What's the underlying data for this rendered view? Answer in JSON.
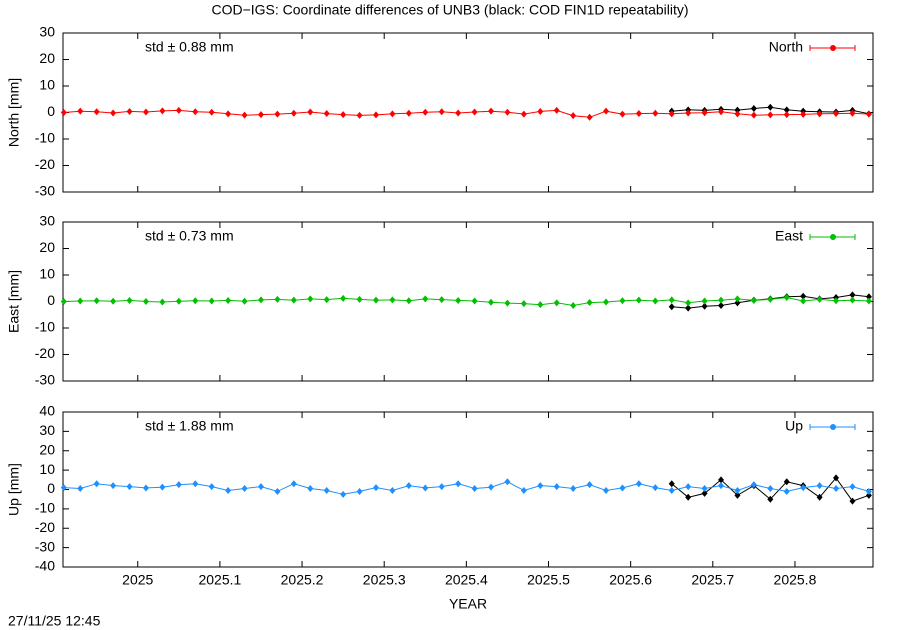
{
  "title": "COD−IGS: Coordinate differences of UNB3 (black: COD FIN1D repeatability)",
  "timestamp": "27/11/25 12:45",
  "chart_data": [
    {
      "type": "line",
      "ylabel": "North [mm]",
      "annotation": "std ± 0.88 mm",
      "legend": "top right",
      "xlim": [
        2024.909,
        2025.895
      ],
      "xticks": [
        2025,
        2025.1,
        2025.2,
        2025.3,
        2025.4,
        2025.5,
        2025.6,
        2025.7,
        2025.8
      ],
      "xtick_labels": false,
      "ylim": [
        -30,
        30
      ],
      "yticks": [
        -30,
        -20,
        -10,
        0,
        10,
        20,
        30
      ],
      "series": [
        {
          "color": "#000000",
          "x": [
            2025.65,
            2025.67,
            2025.69,
            2025.71,
            2025.73,
            2025.75,
            2025.77,
            2025.79,
            2025.81,
            2025.83,
            2025.85,
            2025.87,
            2025.89
          ],
          "values": [
            0.5,
            1,
            0.8,
            1.2,
            0.9,
            1.5,
            2,
            1,
            0.5,
            0.3,
            0.2,
            0.8,
            -0.5
          ]
        },
        {
          "name": "North",
          "color": "#ff0000",
          "x": [
            2024.91,
            2024.93,
            2024.95,
            2024.97,
            2024.99,
            2025.01,
            2025.03,
            2025.05,
            2025.07,
            2025.09,
            2025.11,
            2025.13,
            2025.15,
            2025.17,
            2025.19,
            2025.21,
            2025.23,
            2025.25,
            2025.27,
            2025.29,
            2025.31,
            2025.33,
            2025.35,
            2025.37,
            2025.39,
            2025.41,
            2025.43,
            2025.45,
            2025.47,
            2025.49,
            2025.51,
            2025.53,
            2025.55,
            2025.57,
            2025.59,
            2025.61,
            2025.63,
            2025.65,
            2025.67,
            2025.69,
            2025.71,
            2025.73,
            2025.75,
            2025.77,
            2025.79,
            2025.81,
            2025.83,
            2025.85,
            2025.87,
            2025.89
          ],
          "values": [
            0,
            0.5,
            0.3,
            -0.2,
            0.4,
            0.2,
            0.6,
            0.8,
            0.3,
            0.1,
            -0.5,
            -1,
            -0.8,
            -0.6,
            -0.3,
            0.2,
            -0.4,
            -0.8,
            -1.1,
            -0.9,
            -0.5,
            -0.3,
            0.1,
            0.3,
            -0.2,
            0.2,
            0.5,
            0.1,
            -0.6,
            0.4,
            0.8,
            -1.2,
            -1.8,
            0.5,
            -0.6,
            -0.4,
            -0.3,
            -0.5,
            -0.2,
            -0.1,
            0.3,
            -0.5,
            -1,
            -0.9,
            -0.8,
            -0.7,
            -0.5,
            -0.4,
            -0.3,
            -0.6
          ]
        }
      ]
    },
    {
      "type": "line",
      "ylabel": "East [mm]",
      "annotation": "std ± 0.73 mm",
      "legend": "top right",
      "xlim": [
        2024.909,
        2025.895
      ],
      "xticks": [
        2025,
        2025.1,
        2025.2,
        2025.3,
        2025.4,
        2025.5,
        2025.6,
        2025.7,
        2025.8
      ],
      "xtick_labels": false,
      "ylim": [
        -30,
        30
      ],
      "yticks": [
        -30,
        -20,
        -10,
        0,
        10,
        20,
        30
      ],
      "series": [
        {
          "color": "#000000",
          "x": [
            2025.65,
            2025.67,
            2025.69,
            2025.71,
            2025.73,
            2025.75,
            2025.77,
            2025.79,
            2025.81,
            2025.83,
            2025.85,
            2025.87,
            2025.89
          ],
          "values": [
            -2,
            -2.5,
            -1.8,
            -1.5,
            -0.5,
            0.5,
            1,
            1.8,
            2,
            1,
            1.5,
            2.5,
            1.8
          ]
        },
        {
          "name": "East",
          "color": "#00c000",
          "x": [
            2024.91,
            2024.93,
            2024.95,
            2024.97,
            2024.99,
            2025.01,
            2025.03,
            2025.05,
            2025.07,
            2025.09,
            2025.11,
            2025.13,
            2025.15,
            2025.17,
            2025.19,
            2025.21,
            2025.23,
            2025.25,
            2025.27,
            2025.29,
            2025.31,
            2025.33,
            2025.35,
            2025.37,
            2025.39,
            2025.41,
            2025.43,
            2025.45,
            2025.47,
            2025.49,
            2025.51,
            2025.53,
            2025.55,
            2025.57,
            2025.59,
            2025.61,
            2025.63,
            2025.65,
            2025.67,
            2025.69,
            2025.71,
            2025.73,
            2025.75,
            2025.77,
            2025.79,
            2025.81,
            2025.83,
            2025.85,
            2025.87,
            2025.89
          ],
          "values": [
            0,
            0.2,
            0.3,
            0.1,
            0.4,
            0,
            -0.2,
            0.1,
            0.3,
            0.2,
            0.4,
            0.1,
            0.6,
            0.8,
            0.5,
            1,
            0.7,
            1.2,
            0.8,
            0.5,
            0.6,
            0.3,
            1,
            0.7,
            0.4,
            0.2,
            -0.3,
            -0.6,
            -0.8,
            -1.2,
            -0.5,
            -1.5,
            -0.4,
            -0.2,
            0.3,
            0.5,
            0.2,
            0.6,
            -0.5,
            0.2,
            0.5,
            1,
            0.4,
            0.8,
            1.5,
            0.2,
            0.8,
            0.3,
            0.5,
            0.2
          ]
        }
      ]
    },
    {
      "type": "line",
      "ylabel": "Up [mm]",
      "annotation": "std ± 1.88 mm",
      "legend": "top right",
      "xlabel": "YEAR",
      "xlim": [
        2024.909,
        2025.895
      ],
      "xticks": [
        2025,
        2025.1,
        2025.2,
        2025.3,
        2025.4,
        2025.5,
        2025.6,
        2025.7,
        2025.8
      ],
      "xtick_labels": true,
      "ylim": [
        -40,
        40
      ],
      "yticks": [
        -40,
        -30,
        -20,
        -10,
        0,
        10,
        20,
        30,
        40
      ],
      "series": [
        {
          "color": "#000000",
          "x": [
            2025.65,
            2025.67,
            2025.69,
            2025.71,
            2025.73,
            2025.75,
            2025.77,
            2025.79,
            2025.81,
            2025.83,
            2025.85,
            2025.87,
            2025.89
          ],
          "values": [
            3,
            -4,
            -2,
            5,
            -3,
            2,
            -5,
            4,
            2,
            -4,
            6,
            -6,
            -3
          ]
        },
        {
          "name": "Up",
          "color": "#1e90ff",
          "x": [
            2024.91,
            2024.93,
            2024.95,
            2024.97,
            2024.99,
            2025.01,
            2025.03,
            2025.05,
            2025.07,
            2025.09,
            2025.11,
            2025.13,
            2025.15,
            2025.17,
            2025.19,
            2025.21,
            2025.23,
            2025.25,
            2025.27,
            2025.29,
            2025.31,
            2025.33,
            2025.35,
            2025.37,
            2025.39,
            2025.41,
            2025.43,
            2025.45,
            2025.47,
            2025.49,
            2025.51,
            2025.53,
            2025.55,
            2025.57,
            2025.59,
            2025.61,
            2025.63,
            2025.65,
            2025.67,
            2025.69,
            2025.71,
            2025.73,
            2025.75,
            2025.77,
            2025.79,
            2025.81,
            2025.83,
            2025.85,
            2025.87,
            2025.89
          ],
          "values": [
            1,
            0.5,
            3,
            2,
            1.5,
            0.8,
            1.2,
            2.5,
            3,
            1.5,
            -0.5,
            0.5,
            1.5,
            -1,
            3,
            0.5,
            -0.5,
            -2.5,
            -1,
            1,
            -0.5,
            2,
            0.8,
            1.5,
            3,
            0.5,
            1.2,
            4,
            -0.5,
            2,
            1.5,
            0.5,
            2.5,
            -0.5,
            0.8,
            3,
            1,
            -0.5,
            1.5,
            0.5,
            2,
            -0.5,
            2.5,
            0.5,
            -1,
            1,
            2,
            0.5,
            1.5,
            -1
          ]
        }
      ]
    }
  ]
}
